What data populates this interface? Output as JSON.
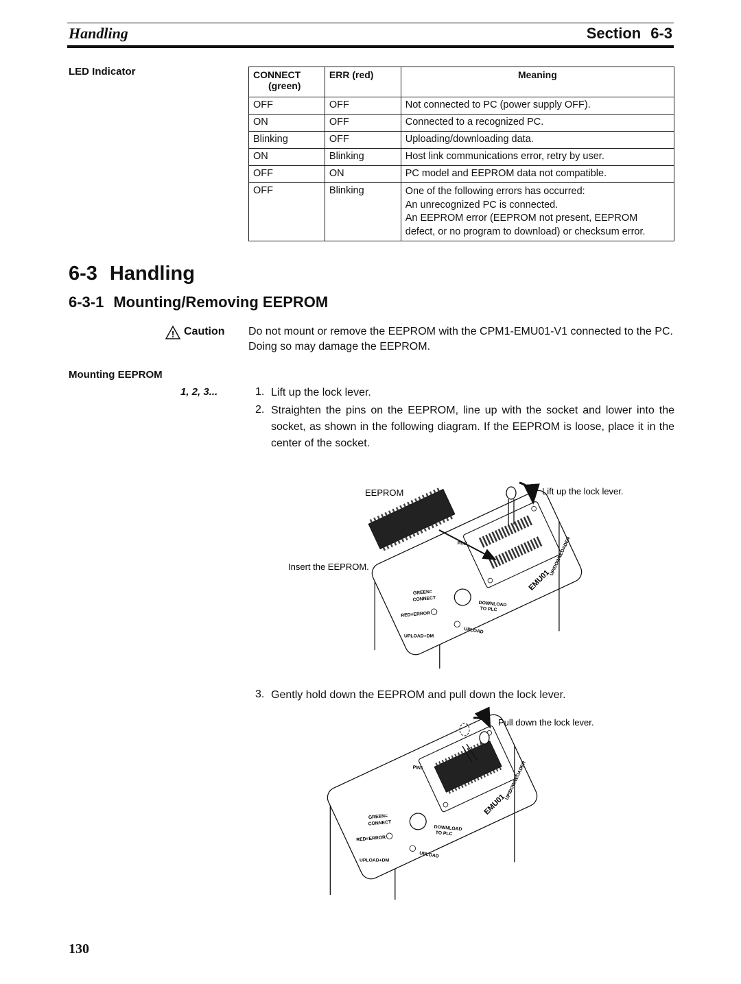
{
  "header": {
    "chapter": "Handling",
    "section_label": "Section",
    "section_number": "6-3"
  },
  "led_indicator": {
    "label": "LED Indicator",
    "table": {
      "columns": [
        [
          "CONNECT",
          "(green)"
        ],
        [
          "ERR (red)"
        ],
        [
          "Meaning"
        ]
      ],
      "rows": [
        [
          "OFF",
          "OFF",
          "Not connected to PC (power supply OFF)."
        ],
        [
          "ON",
          "OFF",
          "Connected to a recognized PC."
        ],
        [
          "Blinking",
          "OFF",
          "Uploading/downloading data."
        ],
        [
          "ON",
          "Blinking",
          "Host link communications error, retry by user."
        ],
        [
          "OFF",
          "ON",
          "PC model and EEPROM data not compatible."
        ],
        [
          "OFF",
          "Blinking",
          [
            "One of the following errors has occurred:",
            "An unrecognized PC is connected.",
            "An EEPROM error (EEPROM not present, EEPROM defect, or no program to download) or checksum error."
          ]
        ]
      ]
    }
  },
  "section": {
    "number": "6-3",
    "title": "Handling"
  },
  "subsection": {
    "number": "6-3-1",
    "title": "Mounting/Removing EEPROM"
  },
  "caution": {
    "label": "Caution",
    "text": "Do not mount or remove the EEPROM with the CPM1-EMU01-V1 connected to the PC. Doing so may damage the EEPROM."
  },
  "mounting": {
    "label": "Mounting EEPROM",
    "steps_label": "1, 2, 3...",
    "steps": [
      {
        "number": "1.",
        "text": "Lift up the lock lever."
      },
      {
        "number": "2.",
        "text": "Straighten the pins on the EEPROM, line up with the socket and lower into the socket, as shown in the following diagram. If the EEPROM is loose, place it in the center of the socket."
      },
      {
        "number": "3.",
        "text": "Gently hold down the EEPROM and pull down the lock lever."
      }
    ]
  },
  "figures": [
    {
      "labels": [
        "EEPROM",
        "Insert the EEPROM.",
        "Lift up the lock lever."
      ],
      "device": {
        "pin": "PIN1",
        "green": "GREEN=",
        "connect": "CONNECT",
        "red_error": "RED=ERROR",
        "upload_dm": "UPLOAD+DM",
        "download": "DOWNLOAD",
        "to_plc": "TO PLC",
        "upload": "UPLOAD",
        "model": "EMU01",
        "name": "UP/DOWNLOADER"
      }
    },
    {
      "labels": [
        "Pull down the lock lever."
      ],
      "device": {
        "pin": "PIN1",
        "green": "GREEN=",
        "connect": "CONNECT",
        "red_error": "RED=ERROR",
        "upload_dm": "UPLOAD+DM",
        "download": "DOWNLOAD",
        "to_plc": "TO PLC",
        "upload": "UPLOAD",
        "model": "EMU01",
        "name": "UP/DOWNLOADER"
      }
    }
  ],
  "page_number": "130"
}
